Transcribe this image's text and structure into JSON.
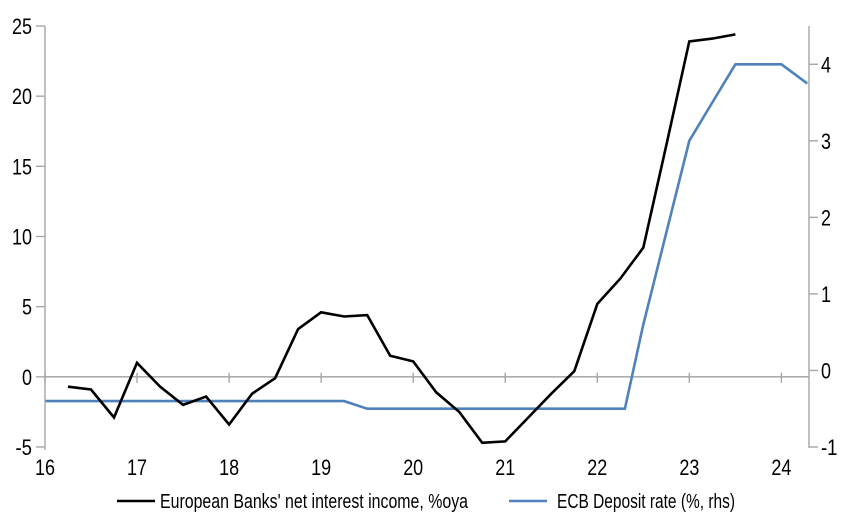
{
  "chart_data": {
    "type": "line",
    "title": "",
    "xlabel": "",
    "ylabel": "",
    "x_axis": {
      "range": [
        16,
        24.3
      ],
      "ticks": [
        16,
        17,
        18,
        19,
        20,
        21,
        22,
        23,
        24
      ],
      "tick_position": "on-zero-line-labels-bottom"
    },
    "left_axis": {
      "range": [
        -5,
        25
      ],
      "ticks": [
        25,
        20,
        15,
        10,
        5,
        0,
        -5
      ]
    },
    "right_axis": {
      "range": [
        -1,
        4.5
      ],
      "ticks": [
        4,
        3,
        2,
        1,
        0,
        -1
      ]
    },
    "grid": "horizontal-zero-line-only",
    "legend_position": "bottom-center",
    "series": [
      {
        "name": "European Banks' net interest income, %oya",
        "axis": "left",
        "color": "#000000",
        "points": [
          [
            16.25,
            -0.7
          ],
          [
            16.5,
            -0.9
          ],
          [
            16.75,
            -2.9
          ],
          [
            17.0,
            1.0
          ],
          [
            17.25,
            -0.7
          ],
          [
            17.5,
            -2.0
          ],
          [
            17.75,
            -1.4
          ],
          [
            18.0,
            -3.4
          ],
          [
            18.25,
            -1.2
          ],
          [
            18.5,
            -0.1
          ],
          [
            18.75,
            3.4
          ],
          [
            19.0,
            4.6
          ],
          [
            19.25,
            4.3
          ],
          [
            19.5,
            4.4
          ],
          [
            19.75,
            1.5
          ],
          [
            20.0,
            1.1
          ],
          [
            20.25,
            -1.1
          ],
          [
            20.5,
            -2.5
          ],
          [
            20.75,
            -4.7
          ],
          [
            21.0,
            -4.6
          ],
          [
            21.25,
            -2.9
          ],
          [
            21.5,
            -1.2
          ],
          [
            21.75,
            0.4
          ],
          [
            22.0,
            5.2
          ],
          [
            22.25,
            7.0
          ],
          [
            22.5,
            9.2
          ],
          [
            22.75,
            16.5
          ],
          [
            23.0,
            23.9
          ],
          [
            23.25,
            24.1
          ],
          [
            23.5,
            24.4
          ]
        ]
      },
      {
        "name": "ECB Deposit rate (%, rhs)",
        "axis": "right",
        "color": "#4f81bd",
        "points": [
          [
            16.0,
            -0.4
          ],
          [
            19.25,
            -0.4
          ],
          [
            19.5,
            -0.5
          ],
          [
            22.3,
            -0.5
          ],
          [
            22.5,
            0.6
          ],
          [
            22.75,
            1.8
          ],
          [
            23.0,
            3.0
          ],
          [
            23.25,
            3.5
          ],
          [
            23.5,
            4.0
          ],
          [
            24.0,
            4.0
          ],
          [
            24.28,
            3.75
          ]
        ]
      }
    ],
    "colors": {
      "axis_line": "#a6a6a6",
      "zero_line": "#adadad",
      "tick_text": "#000000",
      "nii_line": "#000000",
      "ecb_line": "#4f81bd"
    }
  }
}
